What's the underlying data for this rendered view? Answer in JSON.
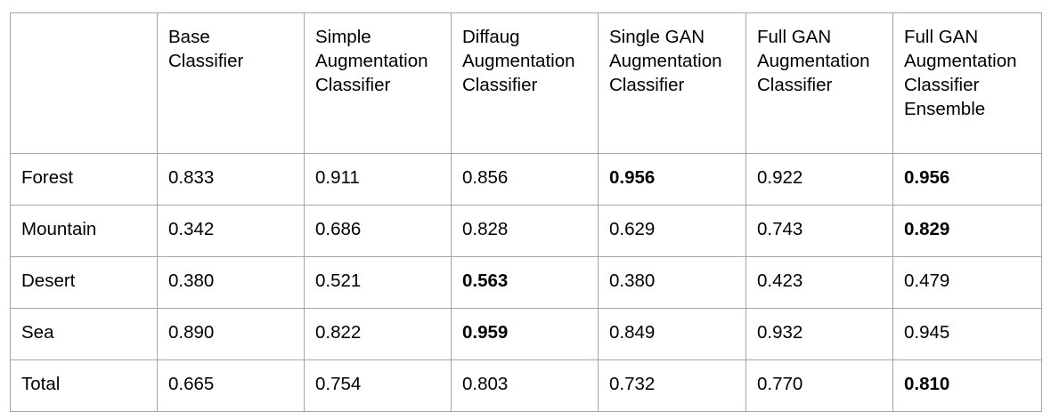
{
  "table": {
    "corner": "",
    "columns": [
      [
        "Base",
        "Classifier"
      ],
      [
        "Simple",
        "Augmentation",
        "Classifier"
      ],
      [
        "Diffaug",
        "Augmentation",
        "Classifier"
      ],
      [
        "Single GAN",
        "Augmentation",
        "Classifier"
      ],
      [
        "Full GAN",
        "Augmentation",
        "Classifier"
      ],
      [
        "Full GAN",
        "Augmentation",
        "Classifier",
        "Ensemble"
      ]
    ],
    "rows": [
      {
        "label": "Forest",
        "values": [
          "0.833",
          "0.911",
          "0.856",
          "0.956",
          "0.922",
          "0.956"
        ],
        "bold": [
          false,
          false,
          false,
          true,
          false,
          true
        ]
      },
      {
        "label": "Mountain",
        "values": [
          "0.342",
          "0.686",
          "0.828",
          "0.629",
          "0.743",
          "0.829"
        ],
        "bold": [
          false,
          false,
          false,
          false,
          false,
          true
        ]
      },
      {
        "label": "Desert",
        "values": [
          "0.380",
          "0.521",
          "0.563",
          "0.380",
          "0.423",
          "0.479"
        ],
        "bold": [
          false,
          false,
          true,
          false,
          false,
          false
        ]
      },
      {
        "label": "Sea",
        "values": [
          "0.890",
          "0.822",
          "0.959",
          "0.849",
          "0.932",
          "0.945"
        ],
        "bold": [
          false,
          false,
          true,
          false,
          false,
          false
        ]
      },
      {
        "label": "Total",
        "values": [
          "0.665",
          "0.754",
          "0.803",
          "0.732",
          "0.770",
          "0.810"
        ],
        "bold": [
          false,
          false,
          false,
          false,
          false,
          true
        ]
      }
    ],
    "border_color": "#a6a6a6"
  }
}
